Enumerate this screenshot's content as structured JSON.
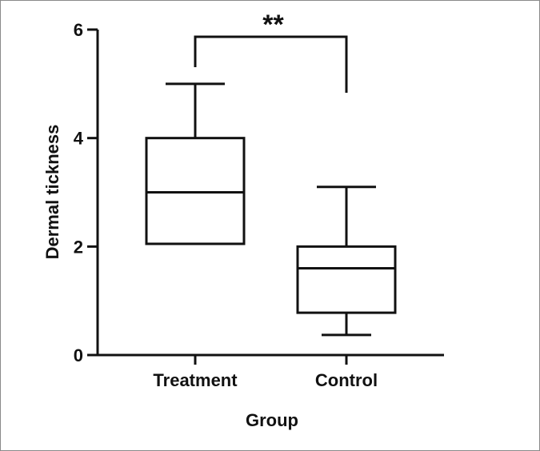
{
  "chart_data": {
    "type": "box",
    "xlabel": "Group",
    "ylabel": "Dermal tickness",
    "ylim": [
      0,
      6
    ],
    "yticks": [
      "0",
      "2",
      "4",
      "6"
    ],
    "categories": [
      "Treatment",
      "Control"
    ],
    "boxes": [
      {
        "category": "Treatment",
        "min": 2.05,
        "q1": 2.05,
        "median": 3.0,
        "q3": 4.0,
        "max": 5.0
      },
      {
        "category": "Control",
        "min": 0.37,
        "q1": 0.78,
        "median": 1.6,
        "q3": 2.0,
        "max": 3.1
      }
    ],
    "significance": {
      "between": [
        "Treatment",
        "Control"
      ],
      "label": "**"
    },
    "grid": false,
    "legend": "none"
  },
  "colors": {
    "stroke": "#111111",
    "background": "#ffffff",
    "frame": "#8a8a8a"
  }
}
